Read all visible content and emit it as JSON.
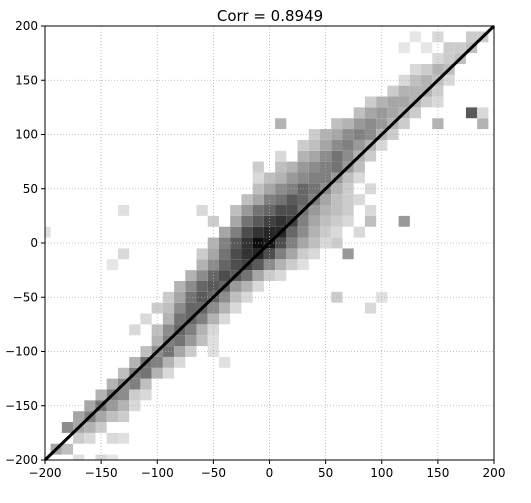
{
  "chart_data": {
    "type": "heatmap",
    "title": "Corr = 0.8949",
    "xlabel": "",
    "ylabel": "",
    "xlim": [
      -200,
      200
    ],
    "ylim": [
      -200,
      200
    ],
    "x_ticks": [
      -200,
      -150,
      -100,
      -50,
      0,
      50,
      100,
      150,
      200
    ],
    "y_ticks": [
      -200,
      -150,
      -100,
      -50,
      0,
      50,
      100,
      150,
      200
    ],
    "x_tick_labels": [
      "−200",
      "−150",
      "−100",
      "−50",
      "0",
      "50",
      "100",
      "150",
      "200"
    ],
    "y_tick_labels": [
      "−200",
      "−150",
      "−100",
      "−50",
      "0",
      "50",
      "100",
      "150",
      "200"
    ],
    "grid": true,
    "grid_style": "dotted",
    "bin_size": 10,
    "reference_line": {
      "type": "identity",
      "from": [
        -200,
        -200
      ],
      "to": [
        200,
        200
      ],
      "color": "#000000"
    },
    "colormap": "Greys",
    "bins": [
      [
        -190,
        -190,
        0.35
      ],
      [
        -180,
        -190,
        0.25
      ],
      [
        -170,
        -180,
        0.2
      ],
      [
        -160,
        -180,
        0.15
      ],
      [
        -180,
        -170,
        0.45
      ],
      [
        -170,
        -170,
        0.35
      ],
      [
        -160,
        -170,
        0.3
      ],
      [
        -150,
        -170,
        0.2
      ],
      [
        -140,
        -180,
        0.15
      ],
      [
        -130,
        -180,
        0.12
      ],
      [
        -170,
        -160,
        0.35
      ],
      [
        -160,
        -160,
        0.5
      ],
      [
        -150,
        -160,
        0.35
      ],
      [
        -140,
        -160,
        0.25
      ],
      [
        -130,
        -160,
        0.2
      ],
      [
        -160,
        -150,
        0.35
      ],
      [
        -150,
        -150,
        0.55
      ],
      [
        -140,
        -150,
        0.4
      ],
      [
        -130,
        -150,
        0.3
      ],
      [
        -120,
        -150,
        0.15
      ],
      [
        -150,
        -140,
        0.3
      ],
      [
        -140,
        -140,
        0.5
      ],
      [
        -130,
        -140,
        0.45
      ],
      [
        -120,
        -140,
        0.2
      ],
      [
        -110,
        -140,
        0.15
      ],
      [
        -140,
        -130,
        0.3
      ],
      [
        -130,
        -130,
        0.45
      ],
      [
        -120,
        -130,
        0.5
      ],
      [
        -110,
        -130,
        0.25
      ],
      [
        -130,
        -120,
        0.25
      ],
      [
        -120,
        -120,
        0.5
      ],
      [
        -110,
        -120,
        0.55
      ],
      [
        -100,
        -120,
        0.3
      ],
      [
        -90,
        -120,
        0.15
      ],
      [
        -120,
        -110,
        0.3
      ],
      [
        -110,
        -110,
        0.55
      ],
      [
        -100,
        -110,
        0.5
      ],
      [
        -90,
        -110,
        0.3
      ],
      [
        -80,
        -110,
        0.15
      ],
      [
        -110,
        -100,
        0.25
      ],
      [
        -100,
        -100,
        0.45
      ],
      [
        -90,
        -100,
        0.55
      ],
      [
        -80,
        -100,
        0.35
      ],
      [
        -70,
        -100,
        0.2
      ],
      [
        -100,
        -90,
        0.3
      ],
      [
        -90,
        -90,
        0.5
      ],
      [
        -80,
        -90,
        0.55
      ],
      [
        -70,
        -90,
        0.4
      ],
      [
        -60,
        -90,
        0.25
      ],
      [
        -50,
        -90,
        0.12
      ],
      [
        -120,
        -80,
        0.15
      ],
      [
        -100,
        -80,
        0.25
      ],
      [
        -90,
        -80,
        0.45
      ],
      [
        -80,
        -80,
        0.6
      ],
      [
        -70,
        -80,
        0.5
      ],
      [
        -60,
        -80,
        0.3
      ],
      [
        -50,
        -80,
        0.15
      ],
      [
        -110,
        -70,
        0.15
      ],
      [
        -90,
        -70,
        0.3
      ],
      [
        -80,
        -70,
        0.55
      ],
      [
        -70,
        -70,
        0.6
      ],
      [
        -60,
        -70,
        0.5
      ],
      [
        -50,
        -70,
        0.3
      ],
      [
        -40,
        -70,
        0.15
      ],
      [
        -100,
        -60,
        0.2
      ],
      [
        -90,
        -60,
        0.25
      ],
      [
        -80,
        -60,
        0.45
      ],
      [
        -70,
        -60,
        0.6
      ],
      [
        -60,
        -60,
        0.6
      ],
      [
        -50,
        -60,
        0.45
      ],
      [
        -40,
        -60,
        0.3
      ],
      [
        -30,
        -60,
        0.15
      ],
      [
        -90,
        -50,
        0.2
      ],
      [
        -80,
        -50,
        0.35
      ],
      [
        -70,
        -50,
        0.55
      ],
      [
        -60,
        -50,
        0.65
      ],
      [
        -50,
        -50,
        0.6
      ],
      [
        -40,
        -50,
        0.45
      ],
      [
        -30,
        -50,
        0.25
      ],
      [
        -20,
        -50,
        0.15
      ],
      [
        -80,
        -40,
        0.3
      ],
      [
        -70,
        -40,
        0.45
      ],
      [
        -60,
        -40,
        0.6
      ],
      [
        -50,
        -40,
        0.65
      ],
      [
        -40,
        -40,
        0.6
      ],
      [
        -30,
        -40,
        0.4
      ],
      [
        -20,
        -40,
        0.3
      ],
      [
        -10,
        -40,
        0.15
      ],
      [
        -70,
        -30,
        0.3
      ],
      [
        -60,
        -30,
        0.45
      ],
      [
        -50,
        -30,
        0.6
      ],
      [
        -40,
        -30,
        0.7
      ],
      [
        -30,
        -30,
        0.65
      ],
      [
        -20,
        -30,
        0.55
      ],
      [
        -10,
        -30,
        0.35
      ],
      [
        0,
        -30,
        0.2
      ],
      [
        10,
        -30,
        0.15
      ],
      [
        -60,
        -20,
        0.3
      ],
      [
        -50,
        -20,
        0.45
      ],
      [
        -40,
        -20,
        0.6
      ],
      [
        -30,
        -20,
        0.7
      ],
      [
        -20,
        -20,
        0.75
      ],
      [
        -10,
        -20,
        0.65
      ],
      [
        0,
        -20,
        0.45
      ],
      [
        10,
        -20,
        0.3
      ],
      [
        20,
        -20,
        0.2
      ],
      [
        30,
        -20,
        0.12
      ],
      [
        -60,
        -10,
        0.2
      ],
      [
        -50,
        -10,
        0.35
      ],
      [
        -40,
        -10,
        0.55
      ],
      [
        -30,
        -10,
        0.7
      ],
      [
        -20,
        -10,
        0.8
      ],
      [
        -10,
        -10,
        0.85
      ],
      [
        0,
        -10,
        0.7
      ],
      [
        10,
        -10,
        0.5
      ],
      [
        20,
        -10,
        0.35
      ],
      [
        30,
        -10,
        0.2
      ],
      [
        40,
        -10,
        0.15
      ],
      [
        70,
        -10,
        0.4
      ],
      [
        -50,
        0,
        0.3
      ],
      [
        -40,
        0,
        0.5
      ],
      [
        -30,
        0,
        0.65
      ],
      [
        -20,
        0,
        0.8
      ],
      [
        -10,
        0,
        0.95
      ],
      [
        0,
        0,
        0.9
      ],
      [
        10,
        0,
        0.7
      ],
      [
        20,
        0,
        0.5
      ],
      [
        30,
        0,
        0.35
      ],
      [
        40,
        0,
        0.25
      ],
      [
        50,
        0,
        0.15
      ],
      [
        60,
        0,
        0.2
      ],
      [
        -40,
        10,
        0.35
      ],
      [
        -30,
        10,
        0.5
      ],
      [
        -20,
        10,
        0.7
      ],
      [
        -10,
        10,
        0.8
      ],
      [
        0,
        10,
        0.85
      ],
      [
        10,
        10,
        0.85
      ],
      [
        20,
        10,
        0.6
      ],
      [
        30,
        10,
        0.45
      ],
      [
        40,
        10,
        0.3
      ],
      [
        50,
        10,
        0.2
      ],
      [
        60,
        10,
        0.15
      ],
      [
        80,
        10,
        0.15
      ],
      [
        -50,
        20,
        0.2
      ],
      [
        -30,
        20,
        0.35
      ],
      [
        -20,
        20,
        0.55
      ],
      [
        -10,
        20,
        0.65
      ],
      [
        0,
        20,
        0.75
      ],
      [
        10,
        20,
        0.8
      ],
      [
        20,
        20,
        0.75
      ],
      [
        30,
        20,
        0.5
      ],
      [
        40,
        20,
        0.35
      ],
      [
        50,
        20,
        0.25
      ],
      [
        60,
        20,
        0.2
      ],
      [
        70,
        20,
        0.15
      ],
      [
        90,
        20,
        0.25
      ],
      [
        120,
        20,
        0.4
      ],
      [
        -60,
        30,
        0.15
      ],
      [
        -30,
        30,
        0.25
      ],
      [
        -20,
        30,
        0.4
      ],
      [
        -10,
        30,
        0.55
      ],
      [
        0,
        30,
        0.6
      ],
      [
        10,
        30,
        0.7
      ],
      [
        20,
        30,
        0.7
      ],
      [
        30,
        30,
        0.55
      ],
      [
        40,
        30,
        0.4
      ],
      [
        50,
        30,
        0.3
      ],
      [
        60,
        30,
        0.25
      ],
      [
        70,
        30,
        0.2
      ],
      [
        90,
        30,
        0.15
      ],
      [
        -20,
        40,
        0.25
      ],
      [
        -10,
        40,
        0.35
      ],
      [
        0,
        40,
        0.5
      ],
      [
        10,
        40,
        0.55
      ],
      [
        20,
        40,
        0.65
      ],
      [
        30,
        40,
        0.6
      ],
      [
        40,
        40,
        0.5
      ],
      [
        50,
        40,
        0.35
      ],
      [
        60,
        40,
        0.25
      ],
      [
        70,
        40,
        0.2
      ],
      [
        80,
        40,
        0.15
      ],
      [
        -10,
        50,
        0.25
      ],
      [
        0,
        50,
        0.35
      ],
      [
        10,
        50,
        0.45
      ],
      [
        20,
        50,
        0.5
      ],
      [
        30,
        50,
        0.6
      ],
      [
        40,
        50,
        0.55
      ],
      [
        50,
        50,
        0.45
      ],
      [
        60,
        50,
        0.3
      ],
      [
        70,
        50,
        0.2
      ],
      [
        90,
        50,
        0.15
      ],
      [
        -10,
        60,
        0.15
      ],
      [
        0,
        60,
        0.25
      ],
      [
        10,
        60,
        0.3
      ],
      [
        20,
        60,
        0.4
      ],
      [
        30,
        60,
        0.45
      ],
      [
        40,
        60,
        0.5
      ],
      [
        50,
        60,
        0.5
      ],
      [
        60,
        60,
        0.4
      ],
      [
        70,
        60,
        0.25
      ],
      [
        80,
        60,
        0.15
      ],
      [
        -10,
        70,
        0.2
      ],
      [
        10,
        70,
        0.25
      ],
      [
        20,
        70,
        0.3
      ],
      [
        30,
        70,
        0.4
      ],
      [
        40,
        70,
        0.45
      ],
      [
        50,
        70,
        0.5
      ],
      [
        60,
        70,
        0.55
      ],
      [
        70,
        70,
        0.4
      ],
      [
        80,
        70,
        0.25
      ],
      [
        10,
        80,
        0.15
      ],
      [
        30,
        80,
        0.3
      ],
      [
        40,
        80,
        0.35
      ],
      [
        50,
        80,
        0.45
      ],
      [
        60,
        80,
        0.55
      ],
      [
        70,
        80,
        0.45
      ],
      [
        80,
        80,
        0.3
      ],
      [
        90,
        80,
        0.2
      ],
      [
        30,
        90,
        0.2
      ],
      [
        40,
        90,
        0.25
      ],
      [
        50,
        90,
        0.35
      ],
      [
        60,
        90,
        0.45
      ],
      [
        70,
        90,
        0.5
      ],
      [
        80,
        90,
        0.4
      ],
      [
        90,
        90,
        0.3
      ],
      [
        100,
        90,
        0.15
      ],
      [
        40,
        100,
        0.2
      ],
      [
        50,
        100,
        0.3
      ],
      [
        60,
        100,
        0.35
      ],
      [
        70,
        100,
        0.45
      ],
      [
        80,
        100,
        0.5
      ],
      [
        90,
        100,
        0.45
      ],
      [
        100,
        100,
        0.3
      ],
      [
        110,
        100,
        0.2
      ],
      [
        10,
        110,
        0.3
      ],
      [
        60,
        110,
        0.25
      ],
      [
        70,
        110,
        0.3
      ],
      [
        80,
        110,
        0.4
      ],
      [
        90,
        110,
        0.45
      ],
      [
        100,
        110,
        0.4
      ],
      [
        110,
        110,
        0.3
      ],
      [
        120,
        110,
        0.2
      ],
      [
        150,
        110,
        0.3
      ],
      [
        190,
        110,
        0.3
      ],
      [
        80,
        120,
        0.25
      ],
      [
        90,
        120,
        0.35
      ],
      [
        100,
        120,
        0.4
      ],
      [
        110,
        120,
        0.35
      ],
      [
        120,
        120,
        0.3
      ],
      [
        130,
        120,
        0.2
      ],
      [
        180,
        120,
        0.65
      ],
      [
        190,
        120,
        0.15
      ],
      [
        90,
        130,
        0.2
      ],
      [
        100,
        130,
        0.3
      ],
      [
        110,
        130,
        0.35
      ],
      [
        120,
        130,
        0.35
      ],
      [
        130,
        130,
        0.3
      ],
      [
        140,
        130,
        0.2
      ],
      [
        150,
        130,
        0.15
      ],
      [
        110,
        140,
        0.2
      ],
      [
        120,
        140,
        0.3
      ],
      [
        130,
        140,
        0.3
      ],
      [
        140,
        140,
        0.3
      ],
      [
        150,
        140,
        0.2
      ],
      [
        120,
        150,
        0.15
      ],
      [
        130,
        150,
        0.25
      ],
      [
        140,
        150,
        0.3
      ],
      [
        150,
        150,
        0.25
      ],
      [
        160,
        150,
        0.15
      ],
      [
        130,
        160,
        0.15
      ],
      [
        140,
        160,
        0.2
      ],
      [
        150,
        160,
        0.3
      ],
      [
        160,
        160,
        0.25
      ],
      [
        150,
        170,
        0.15
      ],
      [
        160,
        170,
        0.2
      ],
      [
        170,
        170,
        0.25
      ],
      [
        120,
        180,
        0.1
      ],
      [
        140,
        180,
        0.1
      ],
      [
        160,
        180,
        0.2
      ],
      [
        170,
        180,
        0.2
      ],
      [
        180,
        180,
        0.25
      ],
      [
        130,
        190,
        0.1
      ],
      [
        150,
        190,
        0.15
      ],
      [
        180,
        190,
        0.2
      ],
      [
        190,
        190,
        0.2
      ],
      [
        -170,
        -200,
        0.12
      ],
      [
        -150,
        -200,
        0.15
      ],
      [
        -140,
        -200,
        0.1
      ],
      [
        -200,
        10,
        0.12
      ],
      [
        -130,
        30,
        0.12
      ],
      [
        -140,
        -20,
        0.1
      ],
      [
        -130,
        -10,
        0.15
      ],
      [
        60,
        -50,
        0.2
      ],
      [
        90,
        -60,
        0.15
      ],
      [
        100,
        -50,
        0.12
      ],
      [
        -40,
        -110,
        0.12
      ],
      [
        -50,
        -100,
        0.12
      ]
    ]
  }
}
